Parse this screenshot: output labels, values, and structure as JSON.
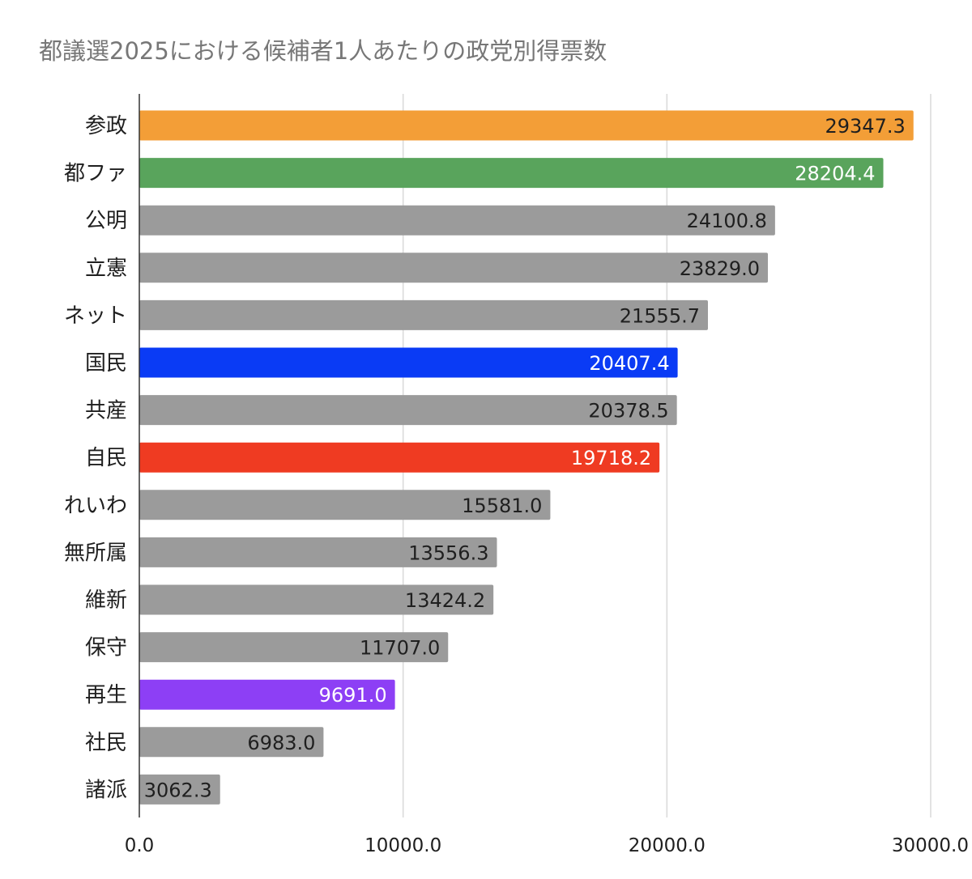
{
  "colors": {
    "default_bar": "#9b9b9b",
    "gridline": "#d9d9d9",
    "axis": "#333333",
    "title": "#777777",
    "dark_text": "#1f1f1f",
    "light_text": "#ffffff"
  },
  "chart_data": {
    "type": "bar",
    "orientation": "horizontal",
    "title": "都議選2025における候補者1人あたりの政党別得票数",
    "xlabel": "",
    "ylabel": "",
    "xlim": [
      0,
      30000
    ],
    "grid": true,
    "legend": "none",
    "ticks": [
      "0.0",
      "10000.0",
      "20000.0",
      "30000.0"
    ],
    "tick_values": [
      0,
      10000,
      20000,
      30000
    ],
    "categories": [
      "参政",
      "都ファ",
      "公明",
      "立憲",
      "ネット",
      "国民",
      "共産",
      "自民",
      "れいわ",
      "無所属",
      "維新",
      "保守",
      "再生",
      "社民",
      "諸派"
    ],
    "values": [
      29347.3,
      28204.4,
      24100.8,
      23829.0,
      21555.7,
      20407.4,
      20378.5,
      19718.2,
      15581.0,
      13556.3,
      13424.2,
      11707.0,
      9691.0,
      6983.0,
      3062.3
    ],
    "value_labels": [
      "29347.3",
      "28204.4",
      "24100.8",
      "23829.0",
      "21555.7",
      "20407.4",
      "20378.5",
      "19718.2",
      "15581.0",
      "13556.3",
      "13424.2",
      "11707.0",
      "9691.0",
      "6983.0",
      "3062.3"
    ],
    "bar_colors": [
      "#f39e37",
      "#59a45c",
      "#9b9b9b",
      "#9b9b9b",
      "#9b9b9b",
      "#0a3bf5",
      "#9b9b9b",
      "#ef3b22",
      "#9b9b9b",
      "#9b9b9b",
      "#9b9b9b",
      "#9b9b9b",
      "#8d3ff5",
      "#9b9b9b",
      "#9b9b9b"
    ],
    "label_colors": [
      "#1f1f1f",
      "#ffffff",
      "#1f1f1f",
      "#1f1f1f",
      "#1f1f1f",
      "#ffffff",
      "#1f1f1f",
      "#ffffff",
      "#1f1f1f",
      "#1f1f1f",
      "#1f1f1f",
      "#1f1f1f",
      "#ffffff",
      "#1f1f1f",
      "#1f1f1f"
    ]
  }
}
